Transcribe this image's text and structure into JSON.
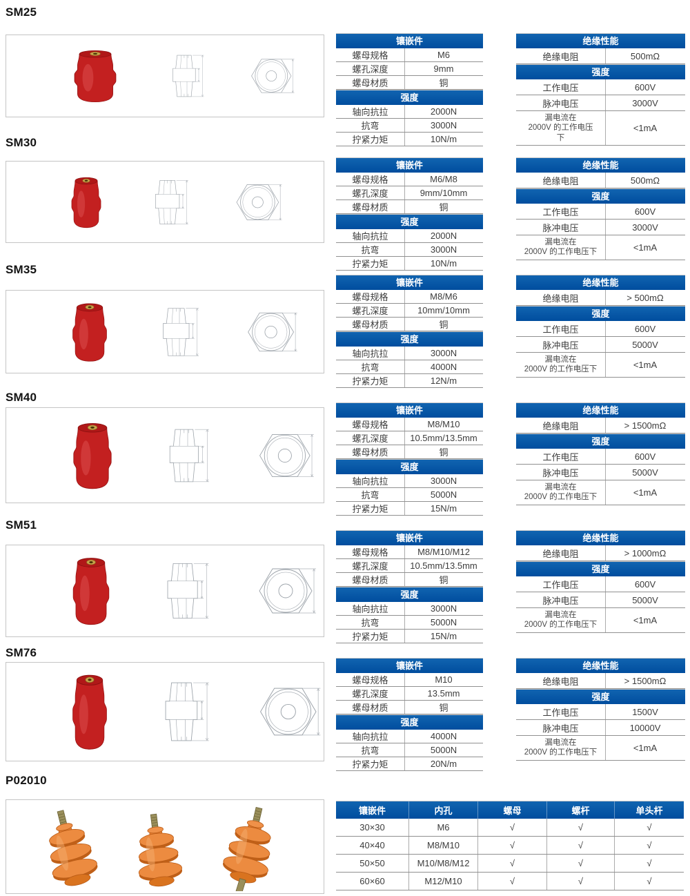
{
  "colors": {
    "header_blue": "#0054a6",
    "row_line_gray": "#8f8f8f",
    "box_border_gray": "#c4c4c4",
    "product_red": "#c32020",
    "product_orange": "#e98034",
    "brass_insert": "#c9a24a"
  },
  "labels": {
    "insert_header": "镶嵌件",
    "strength_header": "强度",
    "insulation_header": "绝缘性能"
  },
  "sections": [
    {
      "model": "SM25",
      "insert_rows": [
        {
          "label": "螺母规格",
          "value": "M6"
        },
        {
          "label": "螺孔深度",
          "value": "9mm"
        },
        {
          "label": "螺母材质",
          "value": "铜"
        }
      ],
      "strength_rows": [
        {
          "label": "轴向抗拉",
          "value": "2000N"
        },
        {
          "label": "抗弯",
          "value": "3000N"
        },
        {
          "label": "拧紧力矩",
          "value": "10N/m"
        }
      ],
      "insulation_rows": [
        {
          "label": "绝缘电阻",
          "value": "500mΩ"
        }
      ],
      "voltage_rows": [
        {
          "label": "工作电压",
          "value": "600V"
        },
        {
          "label": "脉冲电压",
          "value": "3000V"
        },
        {
          "label": "漏电流在\n2000V 的工作电压\n下",
          "value": "<1mA"
        }
      ]
    },
    {
      "model": "SM30",
      "insert_rows": [
        {
          "label": "螺母规格",
          "value": "M6/M8"
        },
        {
          "label": "螺孔深度",
          "value": "9mm/10mm"
        },
        {
          "label": "螺母材质",
          "value": "铜"
        }
      ],
      "strength_rows": [
        {
          "label": "轴向抗拉",
          "value": "2000N"
        },
        {
          "label": "抗弯",
          "value": "3000N"
        },
        {
          "label": "拧紧力矩",
          "value": "10N/m"
        }
      ],
      "insulation_rows": [
        {
          "label": "绝缘电阻",
          "value": "500mΩ"
        }
      ],
      "voltage_rows": [
        {
          "label": "工作电压",
          "value": "600V"
        },
        {
          "label": "脉冲电压",
          "value": "3000V"
        },
        {
          "label": "漏电流在\n2000V 的工作电压下",
          "value": "<1mA"
        }
      ]
    },
    {
      "model": "SM35",
      "insert_rows": [
        {
          "label": "螺母规格",
          "value": "M8/M6"
        },
        {
          "label": "螺孔深度",
          "value": "10mm/10mm"
        },
        {
          "label": "螺母材质",
          "value": "铜"
        }
      ],
      "strength_rows": [
        {
          "label": "轴向抗拉",
          "value": "3000N"
        },
        {
          "label": "抗弯",
          "value": "4000N"
        },
        {
          "label": "拧紧力矩",
          "value": "12N/m"
        }
      ],
      "insulation_rows": [
        {
          "label": "绝缘电阻",
          "value": "> 500mΩ"
        }
      ],
      "voltage_rows": [
        {
          "label": "工作电压",
          "value": "600V"
        },
        {
          "label": "脉冲电压",
          "value": "5000V"
        },
        {
          "label": "漏电流在\n2000V 的工作电压下",
          "value": "<1mA"
        }
      ]
    },
    {
      "model": "SM40",
      "insert_rows": [
        {
          "label": "螺母规格",
          "value": "M8/M10"
        },
        {
          "label": "螺孔深度",
          "value": "10.5mm/13.5mm"
        },
        {
          "label": "螺母材质",
          "value": "铜"
        }
      ],
      "strength_rows": [
        {
          "label": "轴向抗拉",
          "value": "3000N"
        },
        {
          "label": "抗弯",
          "value": "5000N"
        },
        {
          "label": "拧紧力矩",
          "value": "15N/m"
        }
      ],
      "insulation_rows": [
        {
          "label": "绝缘电阻",
          "value": "> 1500mΩ"
        }
      ],
      "voltage_rows": [
        {
          "label": "工作电压",
          "value": "600V"
        },
        {
          "label": "脉冲电压",
          "value": "5000V"
        },
        {
          "label": "漏电流在\n2000V 的工作电压下",
          "value": "<1mA"
        }
      ]
    },
    {
      "model": "SM51",
      "insert_rows": [
        {
          "label": "螺母规格",
          "value": "M8/M10/M12"
        },
        {
          "label": "螺孔深度",
          "value": "10.5mm/13.5mm"
        },
        {
          "label": "螺母材质",
          "value": "铜"
        }
      ],
      "strength_rows": [
        {
          "label": "轴向抗拉",
          "value": "3000N"
        },
        {
          "label": "抗弯",
          "value": "5000N"
        },
        {
          "label": "拧紧力矩",
          "value": "15N/m"
        }
      ],
      "insulation_rows": [
        {
          "label": "绝缘电阻",
          "value": "> 1000mΩ"
        }
      ],
      "voltage_rows": [
        {
          "label": "工作电压",
          "value": "600V"
        },
        {
          "label": "脉冲电压",
          "value": "5000V"
        },
        {
          "label": "漏电流在\n2000V 的工作电压下",
          "value": "<1mA"
        }
      ]
    },
    {
      "model": "SM76",
      "insert_rows": [
        {
          "label": "螺母规格",
          "value": "M10"
        },
        {
          "label": "螺孔深度",
          "value": "13.5mm"
        },
        {
          "label": "螺母材质",
          "value": "铜"
        }
      ],
      "strength_rows": [
        {
          "label": "轴向抗拉",
          "value": "4000N"
        },
        {
          "label": "抗弯",
          "value": "5000N"
        },
        {
          "label": "拧紧力矩",
          "value": "20N/m"
        }
      ],
      "insulation_rows": [
        {
          "label": "绝缘电阻",
          "value": "> 1500mΩ"
        }
      ],
      "voltage_rows": [
        {
          "label": "工作电压",
          "value": "1500V"
        },
        {
          "label": "脉冲电压",
          "value": "10000V"
        },
        {
          "label": "漏电流在\n2000V 的工作电压下",
          "value": "<1mA"
        }
      ]
    }
  ],
  "p02010": {
    "model": "P02010",
    "headers": [
      "镶嵌件",
      "内孔",
      "螺母",
      "螺杆",
      "单头杆"
    ],
    "rows": [
      [
        "30×30",
        "M6",
        "√",
        "√",
        "√"
      ],
      [
        "40×40",
        "M8/M10",
        "√",
        "√",
        "√"
      ],
      [
        "50×50",
        "M10/M8/M12",
        "√",
        "√",
        "√"
      ],
      [
        "60×60",
        "M12/M10",
        "√",
        "√",
        "√"
      ]
    ]
  }
}
